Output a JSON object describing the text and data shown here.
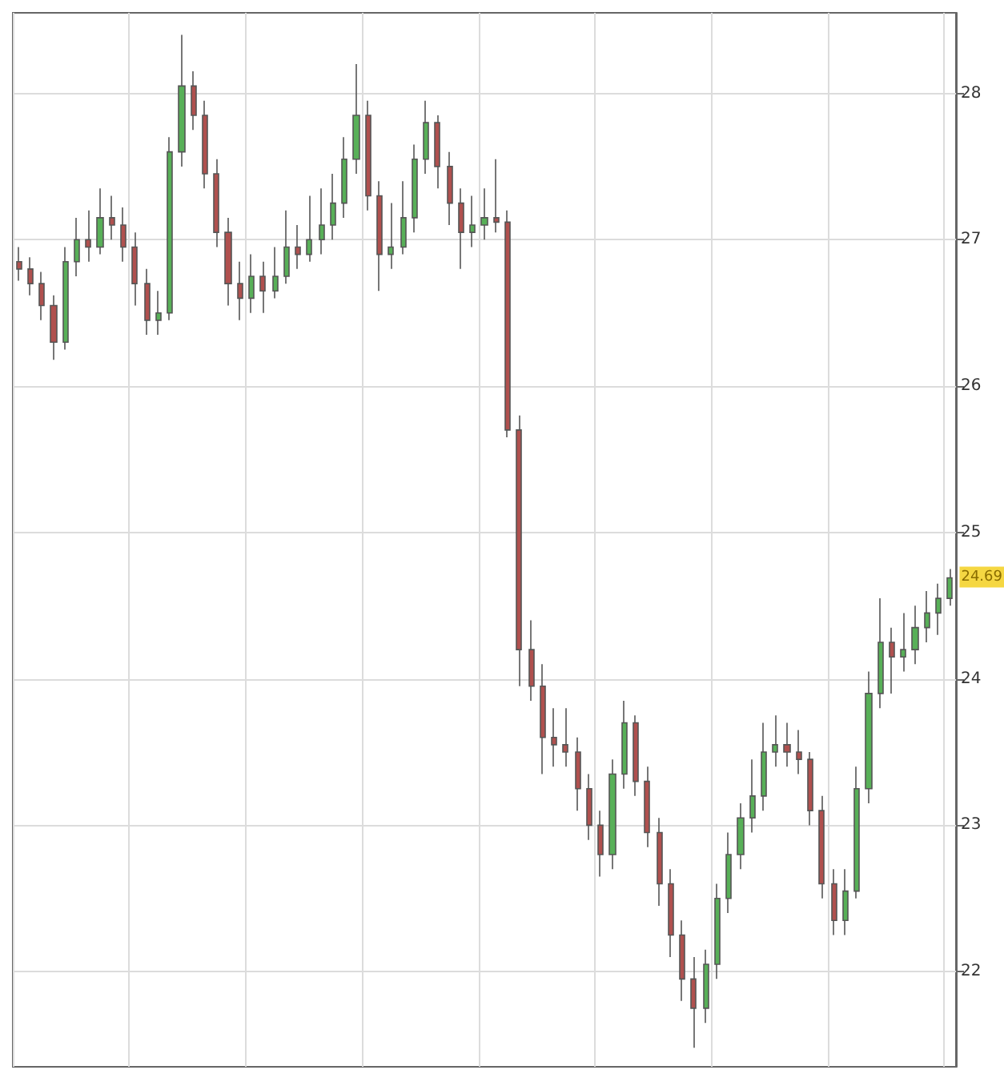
{
  "chart_data": {
    "type": "candlestick",
    "categories": [
      null,
      null,
      null,
      null,
      null,
      null,
      null,
      null,
      null,
      null,
      null,
      null,
      null,
      null,
      null,
      null,
      null,
      null,
      null,
      null,
      null,
      null,
      null,
      null,
      null,
      null,
      null,
      null,
      null,
      null,
      null,
      null,
      null,
      null,
      null,
      null,
      null,
      null,
      null,
      null,
      null,
      null,
      null,
      null,
      null,
      null,
      null,
      null,
      null,
      null,
      null,
      null,
      null,
      null,
      null,
      null,
      null,
      null,
      null,
      null,
      null,
      null,
      null,
      null,
      null,
      null,
      null,
      null,
      null,
      null,
      null,
      null,
      null,
      null,
      null,
      null,
      null,
      null,
      null,
      null,
      null
    ],
    "ohlc": [
      [
        26.85,
        26.95,
        26.72,
        26.8
      ],
      [
        26.8,
        26.88,
        26.62,
        26.7
      ],
      [
        26.7,
        26.78,
        26.45,
        26.55
      ],
      [
        26.55,
        26.62,
        26.18,
        26.3
      ],
      [
        26.3,
        26.95,
        26.25,
        26.85
      ],
      [
        26.85,
        27.15,
        26.75,
        27.0
      ],
      [
        27.0,
        27.2,
        26.85,
        26.95
      ],
      [
        26.95,
        27.35,
        26.9,
        27.15
      ],
      [
        27.15,
        27.3,
        27.0,
        27.1
      ],
      [
        27.1,
        27.22,
        26.85,
        26.95
      ],
      [
        26.95,
        27.05,
        26.55,
        26.7
      ],
      [
        26.7,
        26.8,
        26.35,
        26.45
      ],
      [
        26.45,
        26.65,
        26.35,
        26.5
      ],
      [
        26.5,
        27.7,
        26.45,
        27.6
      ],
      [
        27.6,
        28.4,
        27.5,
        28.05
      ],
      [
        28.05,
        28.15,
        27.75,
        27.85
      ],
      [
        27.85,
        27.95,
        27.35,
        27.45
      ],
      [
        27.45,
        27.55,
        26.95,
        27.05
      ],
      [
        27.05,
        27.15,
        26.55,
        26.7
      ],
      [
        26.7,
        26.85,
        26.45,
        26.6
      ],
      [
        26.6,
        26.9,
        26.5,
        26.75
      ],
      [
        26.75,
        26.85,
        26.5,
        26.65
      ],
      [
        26.65,
        26.95,
        26.6,
        26.75
      ],
      [
        26.75,
        27.2,
        26.7,
        26.95
      ],
      [
        26.95,
        27.1,
        26.8,
        26.9
      ],
      [
        26.9,
        27.3,
        26.85,
        27.0
      ],
      [
        27.0,
        27.35,
        26.9,
        27.1
      ],
      [
        27.1,
        27.45,
        27.0,
        27.25
      ],
      [
        27.25,
        27.7,
        27.15,
        27.55
      ],
      [
        27.55,
        28.2,
        27.45,
        27.85
      ],
      [
        27.85,
        27.95,
        27.2,
        27.3
      ],
      [
        27.3,
        27.4,
        26.65,
        26.9
      ],
      [
        26.9,
        27.25,
        26.8,
        26.95
      ],
      [
        26.95,
        27.4,
        26.9,
        27.15
      ],
      [
        27.15,
        27.65,
        27.05,
        27.55
      ],
      [
        27.55,
        27.95,
        27.45,
        27.8
      ],
      [
        27.8,
        27.85,
        27.35,
        27.5
      ],
      [
        27.5,
        27.6,
        27.1,
        27.25
      ],
      [
        27.25,
        27.35,
        26.8,
        27.05
      ],
      [
        27.05,
        27.3,
        26.95,
        27.1
      ],
      [
        27.1,
        27.35,
        27.0,
        27.15
      ],
      [
        27.15,
        27.55,
        27.05,
        27.12
      ],
      [
        27.12,
        27.2,
        25.65,
        25.7
      ],
      [
        25.7,
        25.8,
        23.95,
        24.2
      ],
      [
        24.2,
        24.4,
        23.85,
        23.95
      ],
      [
        23.95,
        24.1,
        23.35,
        23.6
      ],
      [
        23.6,
        23.8,
        23.4,
        23.55
      ],
      [
        23.55,
        23.8,
        23.4,
        23.5
      ],
      [
        23.5,
        23.6,
        23.1,
        23.25
      ],
      [
        23.25,
        23.35,
        22.9,
        23.0
      ],
      [
        23.0,
        23.1,
        22.65,
        22.8
      ],
      [
        22.8,
        23.45,
        22.7,
        23.35
      ],
      [
        23.35,
        23.85,
        23.25,
        23.7
      ],
      [
        23.7,
        23.75,
        23.2,
        23.3
      ],
      [
        23.3,
        23.4,
        22.85,
        22.95
      ],
      [
        22.95,
        23.05,
        22.45,
        22.6
      ],
      [
        22.6,
        22.7,
        22.1,
        22.25
      ],
      [
        22.25,
        22.35,
        21.8,
        21.95
      ],
      [
        21.95,
        22.1,
        21.48,
        21.75
      ],
      [
        21.75,
        22.15,
        21.65,
        22.05
      ],
      [
        22.05,
        22.6,
        21.95,
        22.5
      ],
      [
        22.5,
        22.95,
        22.4,
        22.8
      ],
      [
        22.8,
        23.15,
        22.7,
        23.05
      ],
      [
        23.05,
        23.45,
        22.95,
        23.2
      ],
      [
        23.2,
        23.7,
        23.1,
        23.5
      ],
      [
        23.5,
        23.75,
        23.4,
        23.55
      ],
      [
        23.55,
        23.7,
        23.4,
        23.5
      ],
      [
        23.5,
        23.65,
        23.35,
        23.45
      ],
      [
        23.45,
        23.5,
        23.0,
        23.1
      ],
      [
        23.1,
        23.2,
        22.5,
        22.6
      ],
      [
        22.6,
        22.7,
        22.25,
        22.35
      ],
      [
        22.35,
        22.7,
        22.25,
        22.55
      ],
      [
        22.55,
        23.4,
        22.5,
        23.25
      ],
      [
        23.25,
        24.05,
        23.15,
        23.9
      ],
      [
        23.9,
        24.55,
        23.8,
        24.25
      ],
      [
        24.25,
        24.35,
        23.9,
        24.15
      ],
      [
        24.15,
        24.45,
        24.05,
        24.2
      ],
      [
        24.2,
        24.5,
        24.1,
        24.35
      ],
      [
        24.35,
        24.6,
        24.25,
        24.45
      ],
      [
        24.45,
        24.65,
        24.3,
        24.55
      ],
      [
        24.55,
        24.75,
        24.5,
        24.69
      ]
    ],
    "colors": [
      "#b0504e",
      "#b0504e",
      "#b0504e",
      "#b0504e",
      "#58b058",
      "#58b058",
      "#b0504e",
      "#58b058",
      "#b0504e",
      "#b0504e",
      "#b0504e",
      "#b0504e",
      "#58b058",
      "#58b058",
      "#58b058",
      "#b0504e",
      "#b0504e",
      "#b0504e",
      "#b0504e",
      "#b0504e",
      "#58b058",
      "#b0504e",
      "#58b058",
      "#58b058",
      "#b0504e",
      "#58b058",
      "#58b058",
      "#58b058",
      "#58b058",
      "#58b058",
      "#b0504e",
      "#b0504e",
      "#58b058",
      "#58b058",
      "#58b058",
      "#58b058",
      "#b0504e",
      "#b0504e",
      "#b0504e",
      "#58b058",
      "#58b058",
      "#b0504e",
      "#b0504e",
      "#b0504e",
      "#b0504e",
      "#b0504e",
      "#b0504e",
      "#b0504e",
      "#b0504e",
      "#b0504e",
      "#b0504e",
      "#58b058",
      "#58b058",
      "#b0504e",
      "#b0504e",
      "#b0504e",
      "#b0504e",
      "#b0504e",
      "#b0504e",
      "#58b058",
      "#58b058",
      "#58b058",
      "#58b058",
      "#58b058",
      "#58b058",
      "#58b058",
      "#b0504e",
      "#b0504e",
      "#b0504e",
      "#b0504e",
      "#b0504e",
      "#58b058",
      "#58b058",
      "#58b058",
      "#58b058",
      "#b0504e",
      "#58b058",
      "#58b058",
      "#58b058",
      "#58b058",
      "#58b058"
    ],
    "ylim": [
      21.35,
      28.55
    ],
    "yticks": [
      22,
      23,
      24,
      25,
      26,
      27,
      28
    ],
    "grid": true,
    "tick_labels": "y",
    "annotations": [
      {
        "text": "24.69",
        "y": 24.69
      }
    ]
  }
}
